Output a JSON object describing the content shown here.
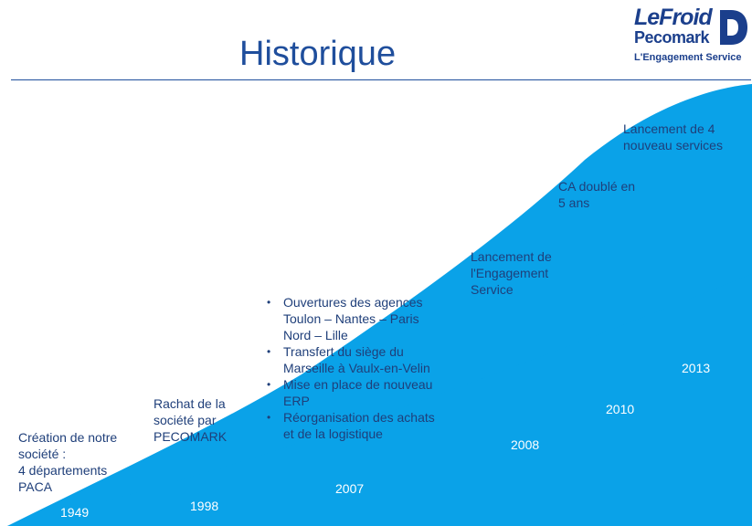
{
  "title": "Historique",
  "logo": {
    "line1": "LeFroid",
    "line2": "Pecomark",
    "tagline": "L'Engagement Service",
    "emblem_icon": "d-letter-icon"
  },
  "colors": {
    "title": "#1f4e9c",
    "wave": "#0aa2e8",
    "text": "#1f3f7a",
    "year_text": "#ffffff"
  },
  "milestones": [
    {
      "year": "1949",
      "lines": [
        "Création de notre",
        "société :",
        "4 départements",
        "PACA"
      ]
    },
    {
      "year": "1998",
      "lines": [
        "Rachat de la",
        "société par",
        "PECOMARK"
      ]
    },
    {
      "year": "2007",
      "bullets": [
        [
          "Ouvertures des agences",
          "Toulon – Nantes – Paris",
          "Nord – Lille"
        ],
        [
          "Transfert du siège du",
          "Marseille à Vaulx-en-Velin"
        ],
        [
          "Mise en place de nouveau",
          "ERP"
        ],
        [
          "Réorganisation des achats",
          "et de la logistique"
        ]
      ]
    },
    {
      "year": "2008",
      "lines": [
        "Lancement de",
        "l'Engagement",
        "Service"
      ]
    },
    {
      "year": "2010",
      "lines": [
        "CA doublé en",
        "5 ans"
      ]
    },
    {
      "year": "2013",
      "lines": [
        "Lancement de 4",
        "nouveau services"
      ]
    }
  ]
}
